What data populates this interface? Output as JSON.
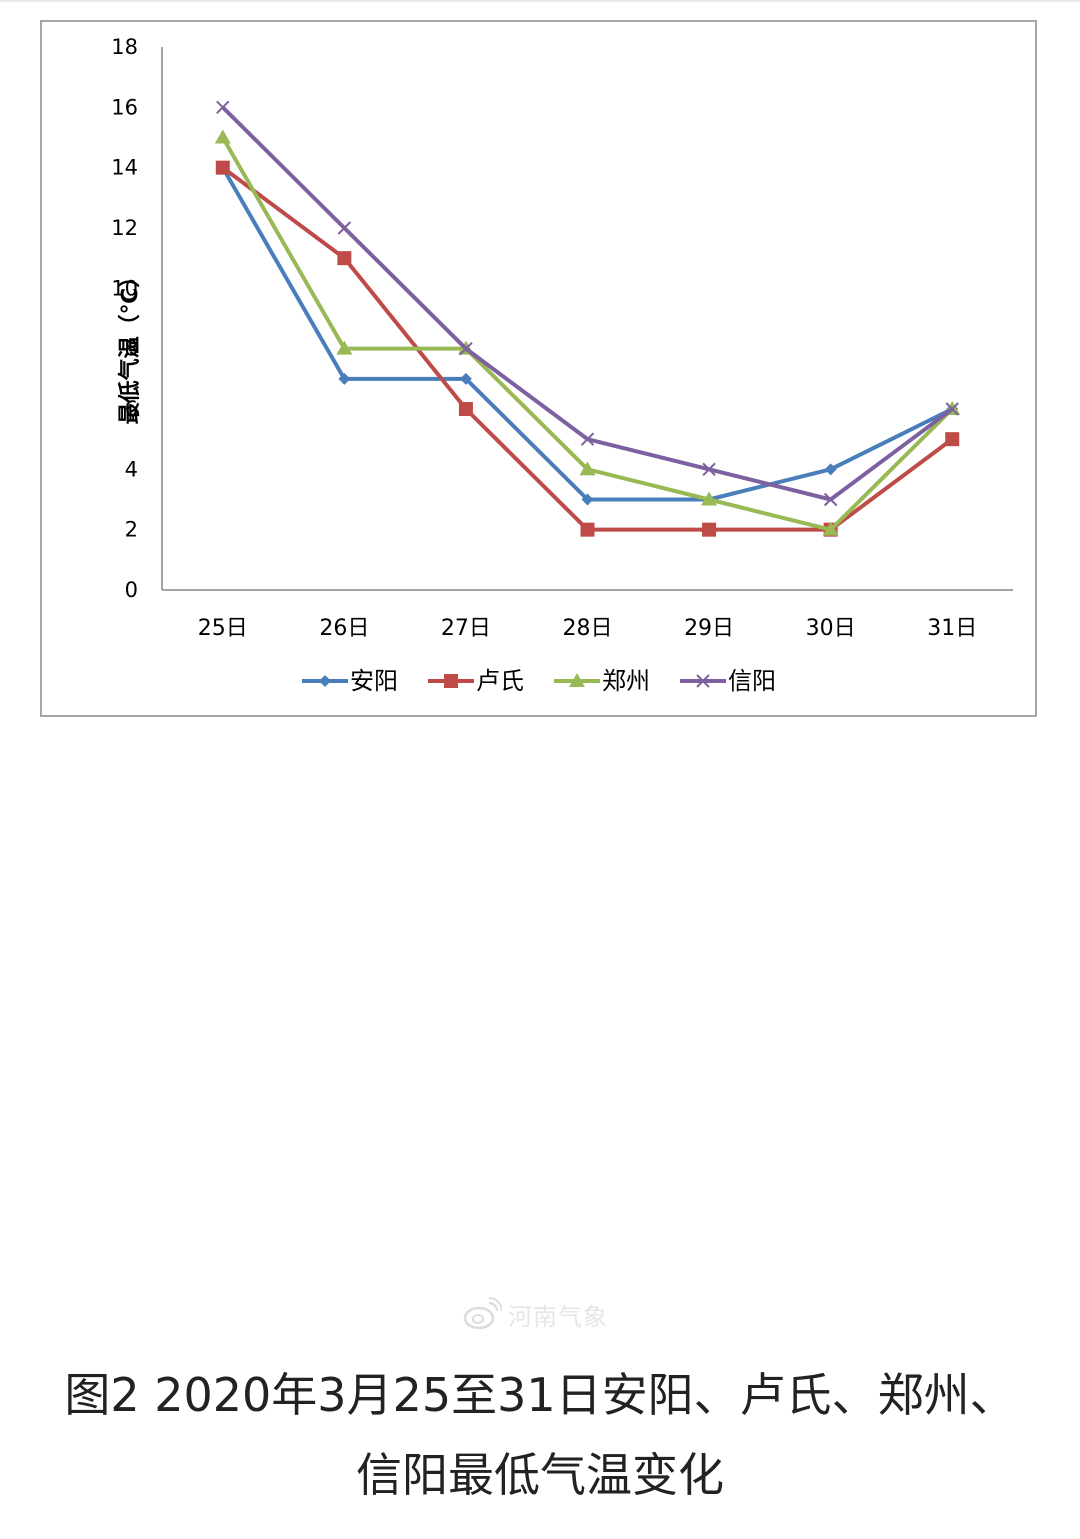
{
  "chart_data": {
    "type": "line",
    "title": "",
    "xlabel": "",
    "ylabel": "最低气温（℃）",
    "categories": [
      "25日",
      "26日",
      "27日",
      "28日",
      "29日",
      "30日",
      "31日"
    ],
    "ylim": [
      0,
      18
    ],
    "yticks": [
      0,
      2,
      4,
      6,
      8,
      10,
      12,
      14,
      16,
      18
    ],
    "grid": false,
    "legend_position": "bottom",
    "series": [
      {
        "name": "安阳",
        "values": [
          14,
          7,
          7,
          3,
          3,
          4,
          6
        ],
        "color": "#4a7ebb",
        "marker": "diamond"
      },
      {
        "name": "卢氏",
        "values": [
          14,
          11,
          6,
          2,
          2,
          2,
          5
        ],
        "color": "#be4b48",
        "marker": "square"
      },
      {
        "name": "郑州",
        "values": [
          15,
          8,
          8,
          4,
          3,
          2,
          6
        ],
        "color": "#98b954",
        "marker": "triangle"
      },
      {
        "name": "信阳",
        "values": [
          16,
          12,
          8,
          5,
          4,
          3,
          6
        ],
        "color": "#7d60a0",
        "marker": "x"
      }
    ]
  },
  "watermark": {
    "text": "河南气象",
    "icon": "weibo-icon"
  },
  "caption": "图2 2020年3月25至31日安阳、卢氏、郑州、信阳最低气温变化"
}
